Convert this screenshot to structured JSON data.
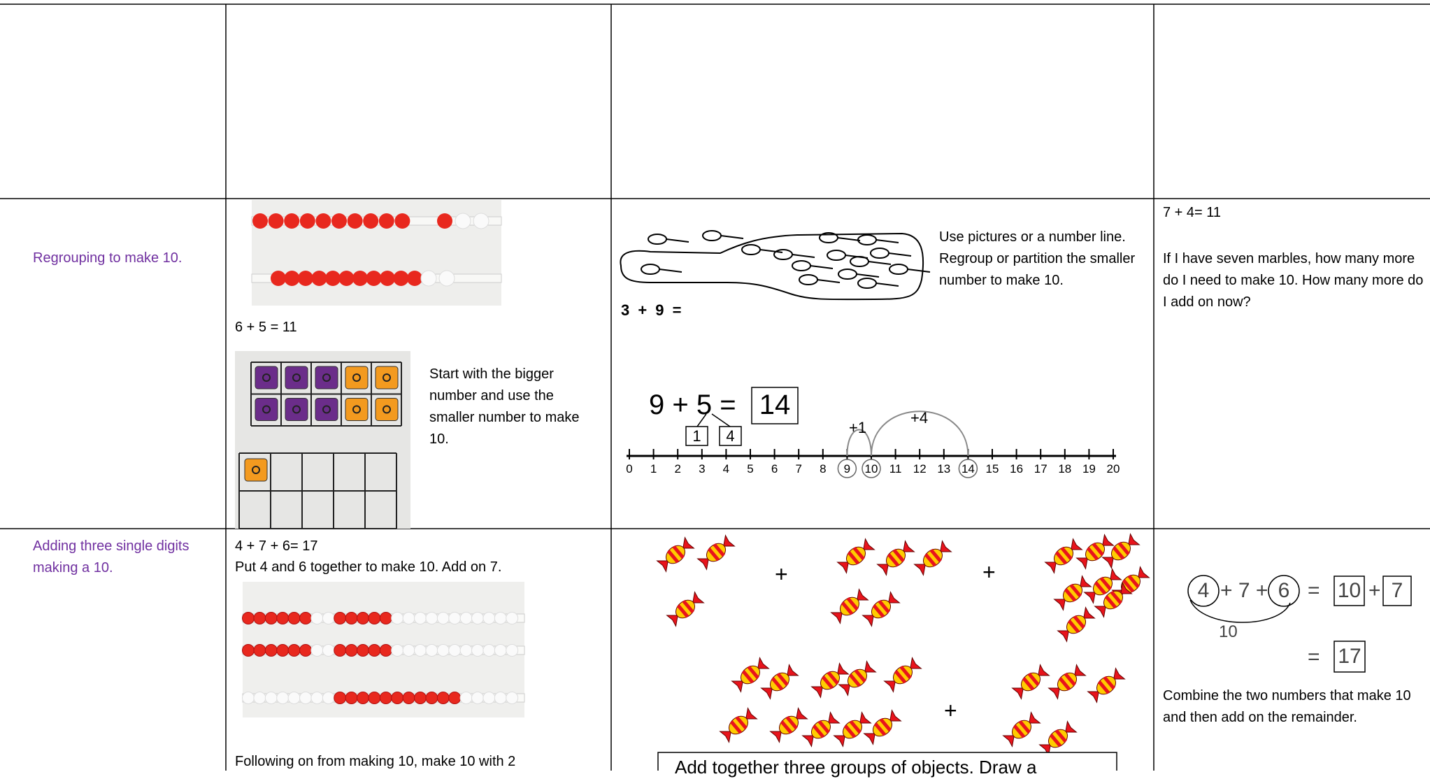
{
  "table": {
    "rows": [
      {
        "label": "Regrouping to make 10.",
        "concrete": {
          "equation": "6 + 5 = 11",
          "note": "Start with the bigger number and use the smaller number to make 10."
        },
        "pictorial": {
          "sum": "3 + 9 =",
          "note": "Use pictures or a number line. Regroup or partition the smaller number to make 10.",
          "equation": "9 + 5 =",
          "answer": "14",
          "parts": [
            "1",
            "4"
          ],
          "jumps": [
            "+1",
            "+4"
          ],
          "number_line": [
            0,
            1,
            2,
            3,
            4,
            5,
            6,
            7,
            8,
            9,
            10,
            11,
            12,
            13,
            14,
            15,
            16,
            17,
            18,
            19,
            20
          ],
          "circled": [
            9,
            10,
            14
          ]
        },
        "abstract": {
          "equation": "7 + 4= 11",
          "question": "If I have seven marbles, how many more do I need to make 10. How many more do I add on now?"
        }
      },
      {
        "label": "Adding three single digits making a 10.",
        "concrete": {
          "equation": "4 + 7 + 6= 17",
          "note": "Put 4 and 6 together to make 10. Add on 7.",
          "follow": "Following on from making 10, make 10 with 2"
        },
        "pictorial": {
          "plus": [
            "+",
            "+",
            "+"
          ],
          "caption": "Add together three groups of objects. Draw a"
        },
        "abstract": {
          "first": "4",
          "middle": "+ 7 +",
          "third": "6",
          "equals": "=",
          "ten": "10",
          "plus": "+",
          "rest": "7",
          "bridge": "10",
          "equals2": "=",
          "total": "17",
          "note": "Combine the two numbers that make 10 and then add on the remainder."
        }
      }
    ]
  }
}
